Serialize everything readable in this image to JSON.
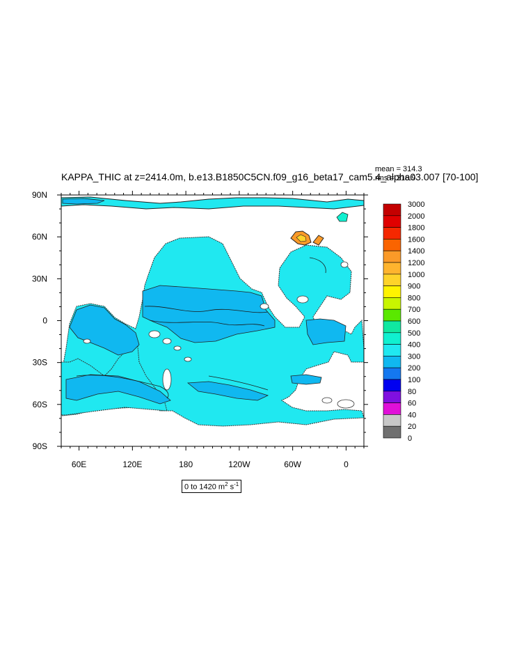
{
  "chart_data": {
    "type": "heatmap",
    "title": "KAPPA_THIC at z=2414.0m, b.e13.B1850C5CN.f09_g16_beta17_cam5.4_alpha03.007 [70-100]",
    "stats": {
      "mean": "mean = 314.3",
      "rms": "rms = 316.9"
    },
    "units_box": {
      "prefix": "0 to 1420 m",
      "sup1": "2",
      "mid": " s",
      "sup2": "-1"
    },
    "x_ticks": [
      "60E",
      "120E",
      "180",
      "120W",
      "60W",
      "0"
    ],
    "y_ticks": [
      "90N",
      "60N",
      "30N",
      "0",
      "30S",
      "60S",
      "90S"
    ],
    "colorbar": {
      "levels": [
        "3000",
        "2000",
        "1800",
        "1600",
        "1400",
        "1200",
        "1000",
        "900",
        "800",
        "700",
        "600",
        "500",
        "400",
        "300",
        "200",
        "100",
        "80",
        "60",
        "40",
        "20",
        "0"
      ],
      "colors": [
        "#c40000",
        "#e00000",
        "#f52800",
        "#fa6400",
        "#fb9a28",
        "#feb42e",
        "#fed32a",
        "#fff300",
        "#c8f500",
        "#5ae800",
        "#10e8a0",
        "#10f0d0",
        "#20e8f0",
        "#10b8f0",
        "#1478f0",
        "#0000f0",
        "#8010e0",
        "#e010d8",
        "#c8c8c8",
        "#707070"
      ]
    },
    "map_fill": {
      "main": "#20e8f0",
      "band": "#10b8f0",
      "hot": "#fb9a28",
      "land": "#ffffff"
    }
  }
}
